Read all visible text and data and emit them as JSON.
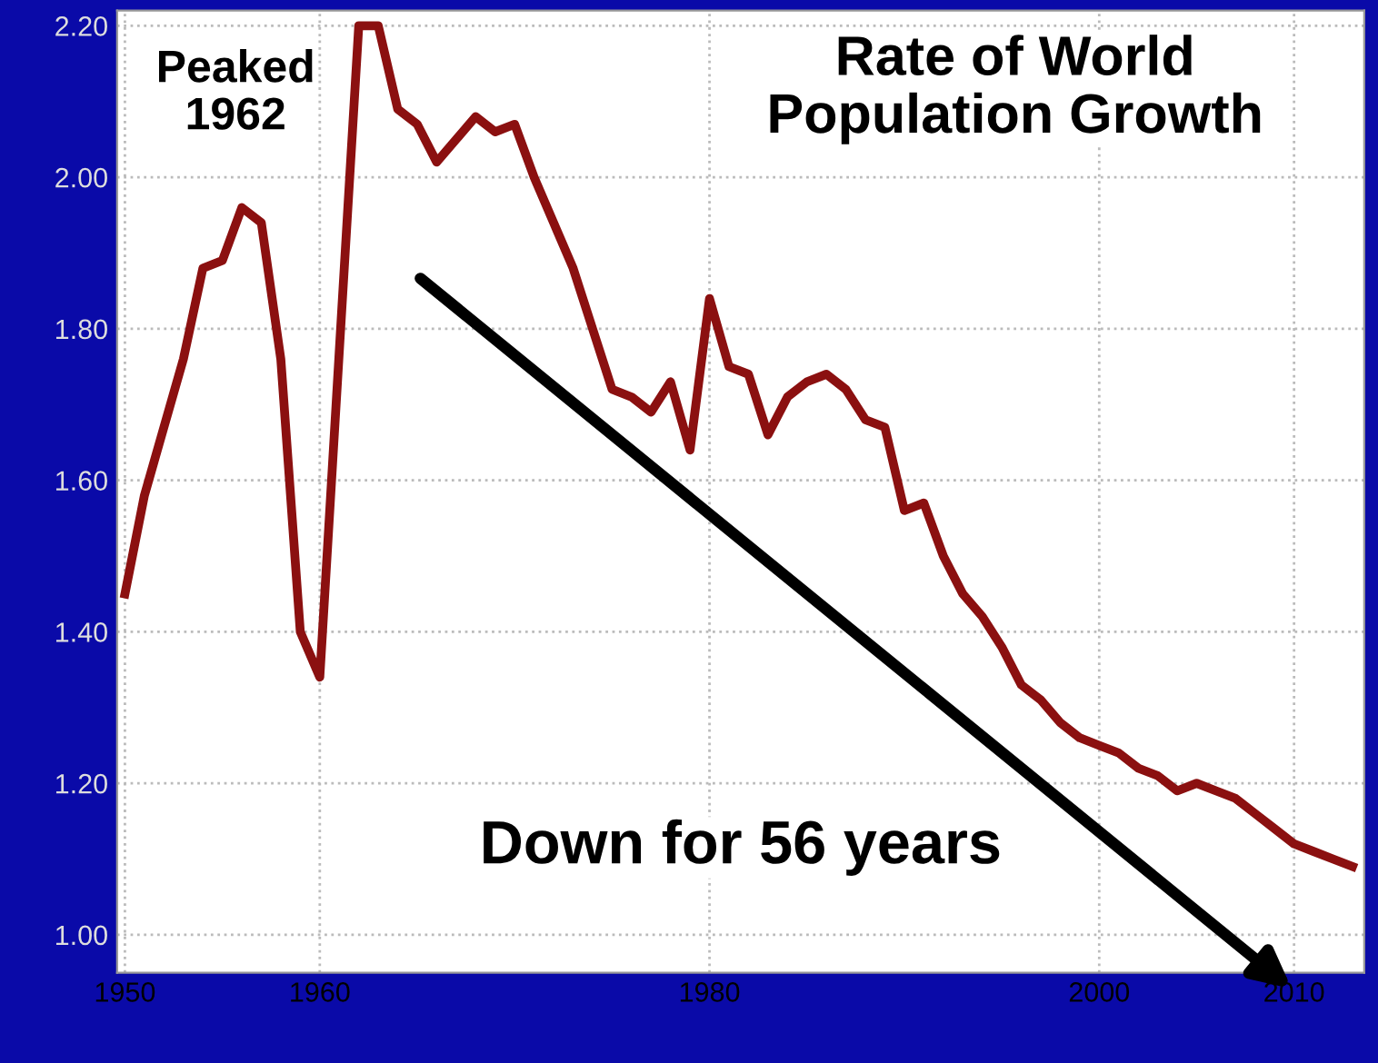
{
  "chart_data": {
    "type": "line",
    "title": "Rate of World\nPopulation Growth",
    "x": [
      1950,
      1951,
      1952,
      1953,
      1954,
      1955,
      1956,
      1957,
      1958,
      1959,
      1960,
      1962,
      1963,
      1964,
      1965,
      1966,
      1967,
      1968,
      1969,
      1970,
      1971,
      1972,
      1973,
      1974,
      1975,
      1976,
      1977,
      1978,
      1979,
      1980,
      1981,
      1982,
      1983,
      1984,
      1985,
      1986,
      1987,
      1988,
      1989,
      1990,
      1991,
      1992,
      1993,
      1994,
      1995,
      1996,
      1997,
      1998,
      1999,
      2000,
      2001,
      2002,
      2003,
      2004,
      2005,
      2006,
      2007,
      2008,
      2009,
      2010,
      2011,
      2012,
      2013
    ],
    "series": [
      {
        "color": "#8b1010",
        "values": [
          1.45,
          1.58,
          1.67,
          1.76,
          1.88,
          1.89,
          1.96,
          1.94,
          1.76,
          1.4,
          1.34,
          2.2,
          2.2,
          2.09,
          2.07,
          2.02,
          2.05,
          2.08,
          2.06,
          2.07,
          2.0,
          1.94,
          1.88,
          1.8,
          1.72,
          1.71,
          1.69,
          1.73,
          1.64,
          1.84,
          1.75,
          1.74,
          1.66,
          1.71,
          1.73,
          1.74,
          1.72,
          1.68,
          1.67,
          1.56,
          1.57,
          1.5,
          1.45,
          1.42,
          1.38,
          1.33,
          1.31,
          1.28,
          1.26,
          1.25,
          1.24,
          1.22,
          1.21,
          1.19,
          1.2,
          1.19,
          1.18,
          1.16,
          1.14,
          1.12,
          1.11,
          1.1,
          1.09
        ]
      }
    ],
    "xlim": [
      1949.6,
      2013.6
    ],
    "ylim": [
      0.95,
      2.22
    ],
    "xticks": [
      1950,
      1960,
      1980,
      2000,
      2010
    ],
    "yticks": [
      {
        "value": 1.0,
        "label": "1.00"
      },
      {
        "value": 1.2,
        "label": "1.20"
      },
      {
        "value": 1.4,
        "label": "1.40"
      },
      {
        "value": 1.6,
        "label": "1.60"
      },
      {
        "value": 1.8,
        "label": "1.80"
      },
      {
        "value": 2.0,
        "label": "2.00"
      },
      {
        "value": 2.2,
        "label": "2.20"
      }
    ],
    "grid": true,
    "marker": "none",
    "line_style": "solid",
    "annotations": [
      "Peaked\n1962",
      "Down for 56 years"
    ]
  }
}
